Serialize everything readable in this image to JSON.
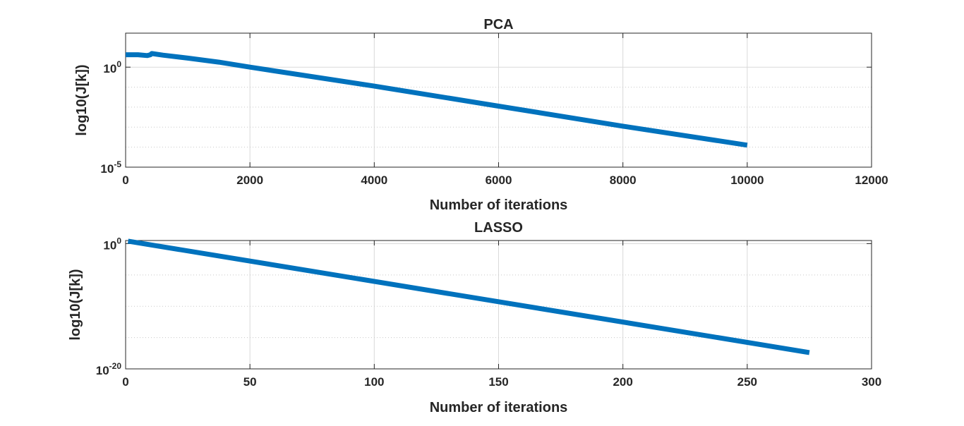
{
  "chart_data": [
    {
      "type": "line",
      "title": "PCA",
      "xlabel": "Number of iterations",
      "ylabel": "log10(J[k])",
      "xlim": [
        0,
        12000
      ],
      "ylim_log10": [
        -5,
        1.7
      ],
      "yscale": "log",
      "grid": true,
      "xticks": [
        0,
        2000,
        4000,
        6000,
        8000,
        10000,
        12000
      ],
      "xtick_labels": [
        "0",
        "2000",
        "4000",
        "6000",
        "8000",
        "10000",
        "12000"
      ],
      "yticks": [
        {
          "value_log10": 0,
          "base": "10",
          "exp": "0"
        },
        {
          "value_log10": -5,
          "base": "10",
          "exp": "-5"
        }
      ],
      "y_minor_log10": [
        -1,
        -2,
        -3,
        -4
      ],
      "series": [
        {
          "color": "#0072bd",
          "x": [
            0,
            200,
            350,
            400,
            420,
            600,
            1000,
            1500,
            2000,
            4000,
            6000,
            8000,
            10000
          ],
          "y_log10": [
            0.62,
            0.62,
            0.58,
            0.62,
            0.68,
            0.6,
            0.45,
            0.25,
            0.0,
            -0.95,
            -1.95,
            -2.95,
            -3.9
          ]
        }
      ]
    },
    {
      "type": "line",
      "title": "LASSO",
      "xlabel": "Number of iterations",
      "ylabel": "log10(J[k])",
      "xlim": [
        0,
        300
      ],
      "ylim_log10": [
        -20,
        0.5
      ],
      "yscale": "log",
      "grid": true,
      "xticks": [
        0,
        50,
        100,
        150,
        200,
        250,
        300
      ],
      "xtick_labels": [
        "0",
        "50",
        "100",
        "150",
        "200",
        "250",
        "300"
      ],
      "yticks": [
        {
          "value_log10": 0,
          "base": "10",
          "exp": "0"
        },
        {
          "value_log10": -20,
          "base": "10",
          "exp": "-20"
        }
      ],
      "y_minor_log10": [
        -5,
        -10,
        -15
      ],
      "series": [
        {
          "color": "#0072bd",
          "x": [
            1,
            275
          ],
          "y_log10": [
            0.4,
            -17.4
          ]
        }
      ]
    }
  ]
}
